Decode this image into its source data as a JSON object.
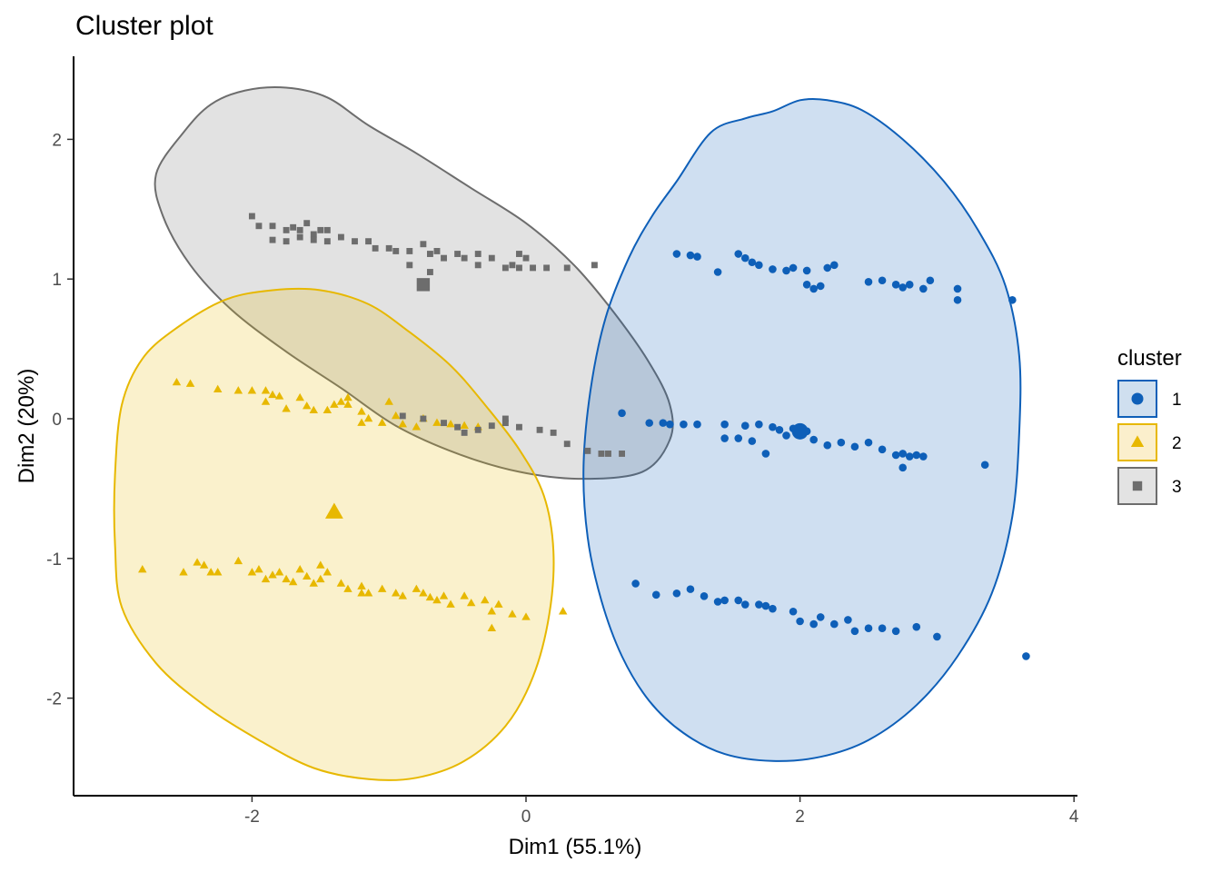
{
  "chart_data": {
    "type": "scatter",
    "title": "Cluster plot",
    "xlabel": "Dim1 (55.1%)",
    "ylabel": "Dim2 (20%)",
    "xlim": [
      -3.3,
      4.0
    ],
    "ylim": [
      -2.7,
      2.6
    ],
    "x_ticks": [
      -2,
      0,
      2,
      4
    ],
    "x_tick_labels": [
      "-2",
      "0",
      "2",
      "4"
    ],
    "y_ticks": [
      -2,
      -1,
      0,
      1,
      2
    ],
    "y_tick_labels": [
      "-2",
      "-1",
      "0",
      "1",
      "2"
    ],
    "grid": false,
    "legend": {
      "title": "cluster",
      "position": "right"
    },
    "series": [
      {
        "name": "1",
        "shape": "circle",
        "color": "#0E5FB8",
        "fill": "#CFDFEF",
        "centroid": [
          2.0,
          -0.09
        ],
        "ellipse": [
          [
            1.1,
            1.7
          ],
          [
            1.35,
            2.05
          ],
          [
            1.6,
            2.15
          ],
          [
            1.8,
            2.2
          ],
          [
            2.0,
            2.28
          ],
          [
            2.2,
            2.28
          ],
          [
            2.45,
            2.21
          ],
          [
            2.75,
            2.0
          ],
          [
            3.05,
            1.7
          ],
          [
            3.3,
            1.35
          ],
          [
            3.5,
            0.95
          ],
          [
            3.6,
            0.45
          ],
          [
            3.6,
            -0.1
          ],
          [
            3.55,
            -0.7
          ],
          [
            3.4,
            -1.25
          ],
          [
            3.15,
            -1.7
          ],
          [
            2.85,
            -2.05
          ],
          [
            2.5,
            -2.3
          ],
          [
            2.15,
            -2.42
          ],
          [
            1.8,
            -2.45
          ],
          [
            1.45,
            -2.4
          ],
          [
            1.15,
            -2.25
          ],
          [
            0.9,
            -2.02
          ],
          [
            0.7,
            -1.7
          ],
          [
            0.55,
            -1.3
          ],
          [
            0.45,
            -0.85
          ],
          [
            0.42,
            -0.35
          ],
          [
            0.47,
            0.2
          ],
          [
            0.58,
            0.72
          ],
          [
            0.75,
            1.15
          ],
          [
            0.92,
            1.45
          ]
        ],
        "points": [
          [
            1.1,
            1.18
          ],
          [
            1.2,
            1.17
          ],
          [
            1.25,
            1.16
          ],
          [
            1.4,
            1.05
          ],
          [
            1.55,
            1.18
          ],
          [
            1.6,
            1.15
          ],
          [
            1.65,
            1.12
          ],
          [
            1.7,
            1.1
          ],
          [
            1.8,
            1.07
          ],
          [
            1.9,
            1.06
          ],
          [
            1.95,
            1.08
          ],
          [
            2.05,
            1.06
          ],
          [
            2.05,
            0.96
          ],
          [
            2.1,
            0.93
          ],
          [
            2.15,
            0.95
          ],
          [
            2.2,
            1.08
          ],
          [
            2.25,
            1.1
          ],
          [
            2.5,
            0.98
          ],
          [
            2.6,
            0.99
          ],
          [
            2.7,
            0.96
          ],
          [
            2.75,
            0.94
          ],
          [
            2.8,
            0.96
          ],
          [
            2.9,
            0.93
          ],
          [
            2.95,
            0.99
          ],
          [
            3.15,
            0.93
          ],
          [
            3.15,
            0.85
          ],
          [
            3.55,
            0.85
          ],
          [
            0.7,
            0.04
          ],
          [
            0.9,
            -0.03
          ],
          [
            1.0,
            -0.03
          ],
          [
            1.05,
            -0.04
          ],
          [
            1.15,
            -0.04
          ],
          [
            1.25,
            -0.04
          ],
          [
            1.45,
            -0.04
          ],
          [
            1.45,
            -0.14
          ],
          [
            1.55,
            -0.14
          ],
          [
            1.6,
            -0.05
          ],
          [
            1.65,
            -0.16
          ],
          [
            1.7,
            -0.04
          ],
          [
            1.75,
            -0.25
          ],
          [
            1.8,
            -0.06
          ],
          [
            1.85,
            -0.08
          ],
          [
            1.9,
            -0.12
          ],
          [
            1.95,
            -0.07
          ],
          [
            2.05,
            -0.09
          ],
          [
            2.1,
            -0.15
          ],
          [
            2.2,
            -0.19
          ],
          [
            2.3,
            -0.17
          ],
          [
            2.4,
            -0.2
          ],
          [
            2.5,
            -0.17
          ],
          [
            2.6,
            -0.22
          ],
          [
            2.7,
            -0.26
          ],
          [
            2.75,
            -0.25
          ],
          [
            2.8,
            -0.27
          ],
          [
            2.85,
            -0.26
          ],
          [
            2.9,
            -0.27
          ],
          [
            3.35,
            -0.33
          ],
          [
            2.75,
            -0.35
          ],
          [
            0.8,
            -1.18
          ],
          [
            0.95,
            -1.26
          ],
          [
            1.1,
            -1.25
          ],
          [
            1.2,
            -1.22
          ],
          [
            1.3,
            -1.27
          ],
          [
            1.4,
            -1.31
          ],
          [
            1.45,
            -1.3
          ],
          [
            1.55,
            -1.3
          ],
          [
            1.6,
            -1.33
          ],
          [
            1.7,
            -1.33
          ],
          [
            1.75,
            -1.34
          ],
          [
            1.8,
            -1.36
          ],
          [
            1.95,
            -1.38
          ],
          [
            2.0,
            -1.45
          ],
          [
            2.1,
            -1.47
          ],
          [
            2.15,
            -1.42
          ],
          [
            2.25,
            -1.47
          ],
          [
            2.35,
            -1.44
          ],
          [
            2.4,
            -1.52
          ],
          [
            2.5,
            -1.5
          ],
          [
            2.6,
            -1.5
          ],
          [
            2.7,
            -1.52
          ],
          [
            2.85,
            -1.49
          ],
          [
            3.0,
            -1.56
          ],
          [
            3.65,
            -1.7
          ]
        ]
      },
      {
        "name": "2",
        "shape": "triangle",
        "color": "#E7B800",
        "fill": "#FBEFCC",
        "centroid": [
          -1.4,
          -0.67
        ],
        "ellipse": [
          [
            -2.55,
            0.65
          ],
          [
            -2.2,
            0.85
          ],
          [
            -1.85,
            0.92
          ],
          [
            -1.5,
            0.92
          ],
          [
            -1.15,
            0.82
          ],
          [
            -0.85,
            0.62
          ],
          [
            -0.55,
            0.38
          ],
          [
            -0.3,
            0.1
          ],
          [
            -0.05,
            -0.22
          ],
          [
            0.13,
            -0.55
          ],
          [
            0.2,
            -0.95
          ],
          [
            0.17,
            -1.4
          ],
          [
            0.05,
            -1.85
          ],
          [
            -0.15,
            -2.2
          ],
          [
            -0.45,
            -2.45
          ],
          [
            -0.8,
            -2.57
          ],
          [
            -1.15,
            -2.58
          ],
          [
            -1.55,
            -2.5
          ],
          [
            -1.95,
            -2.3
          ],
          [
            -2.35,
            -2.05
          ],
          [
            -2.7,
            -1.75
          ],
          [
            -2.95,
            -1.35
          ],
          [
            -3.0,
            -0.9
          ],
          [
            -3.0,
            -0.4
          ],
          [
            -2.95,
            0.1
          ],
          [
            -2.8,
            0.43
          ]
        ],
        "points": [
          [
            -2.55,
            0.26
          ],
          [
            -2.45,
            0.25
          ],
          [
            -2.25,
            0.21
          ],
          [
            -2.1,
            0.2
          ],
          [
            -2.0,
            0.2
          ],
          [
            -1.9,
            0.2
          ],
          [
            -1.85,
            0.17
          ],
          [
            -1.9,
            0.12
          ],
          [
            -1.8,
            0.16
          ],
          [
            -1.75,
            0.07
          ],
          [
            -1.65,
            0.15
          ],
          [
            -1.6,
            0.09
          ],
          [
            -1.55,
            0.06
          ],
          [
            -1.45,
            0.06
          ],
          [
            -1.4,
            0.1
          ],
          [
            -1.35,
            0.12
          ],
          [
            -1.3,
            0.1
          ],
          [
            -1.3,
            0.15
          ],
          [
            -1.2,
            0.05
          ],
          [
            -1.15,
            0.0
          ],
          [
            -1.05,
            -0.03
          ],
          [
            -1.2,
            -0.03
          ],
          [
            -1.0,
            0.12
          ],
          [
            -0.95,
            0.02
          ],
          [
            -0.9,
            -0.04
          ],
          [
            -0.8,
            -0.06
          ],
          [
            -0.75,
            0.0
          ],
          [
            -0.65,
            -0.03
          ],
          [
            -0.55,
            -0.04
          ],
          [
            -0.45,
            -0.05
          ],
          [
            -0.35,
            -0.06
          ],
          [
            -2.8,
            -1.08
          ],
          [
            -2.5,
            -1.1
          ],
          [
            -2.4,
            -1.03
          ],
          [
            -2.35,
            -1.05
          ],
          [
            -2.25,
            -1.1
          ],
          [
            -2.1,
            -1.02
          ],
          [
            -2.0,
            -1.1
          ],
          [
            -1.95,
            -1.08
          ],
          [
            -1.9,
            -1.15
          ],
          [
            -1.85,
            -1.12
          ],
          [
            -1.8,
            -1.1
          ],
          [
            -1.75,
            -1.15
          ],
          [
            -1.7,
            -1.17
          ],
          [
            -1.6,
            -1.13
          ],
          [
            -1.55,
            -1.18
          ],
          [
            -1.5,
            -1.15
          ],
          [
            -1.45,
            -1.1
          ],
          [
            -1.35,
            -1.18
          ],
          [
            -1.3,
            -1.22
          ],
          [
            -1.2,
            -1.2
          ],
          [
            -1.15,
            -1.25
          ],
          [
            -1.05,
            -1.22
          ],
          [
            -0.95,
            -1.25
          ],
          [
            -0.9,
            -1.27
          ],
          [
            -0.8,
            -1.22
          ],
          [
            -0.75,
            -1.25
          ],
          [
            -0.7,
            -1.28
          ],
          [
            -0.65,
            -1.3
          ],
          [
            -0.6,
            -1.27
          ],
          [
            -0.55,
            -1.33
          ],
          [
            -0.45,
            -1.27
          ],
          [
            -0.4,
            -1.32
          ],
          [
            -0.3,
            -1.3
          ],
          [
            -0.2,
            -1.33
          ],
          [
            -0.25,
            -1.38
          ],
          [
            -0.1,
            -1.4
          ],
          [
            0.0,
            -1.42
          ],
          [
            0.27,
            -1.38
          ],
          [
            -0.25,
            -1.5
          ],
          [
            -2.3,
            -1.1
          ],
          [
            -1.65,
            -1.08
          ],
          [
            -1.5,
            -1.05
          ],
          [
            -1.2,
            -1.25
          ]
        ]
      },
      {
        "name": "3",
        "shape": "square",
        "color": "#6D6D6D",
        "fill": "#E3E3E3",
        "centroid": [
          -0.75,
          0.96
        ],
        "ellipse": [
          [
            -2.7,
            1.75
          ],
          [
            -2.5,
            2.05
          ],
          [
            -2.3,
            2.25
          ],
          [
            -2.05,
            2.35
          ],
          [
            -1.75,
            2.37
          ],
          [
            -1.45,
            2.3
          ],
          [
            -1.15,
            2.1
          ],
          [
            -0.8,
            1.9
          ],
          [
            -0.4,
            1.65
          ],
          [
            0.0,
            1.4
          ],
          [
            0.35,
            1.1
          ],
          [
            0.65,
            0.75
          ],
          [
            0.9,
            0.4
          ],
          [
            1.05,
            0.1
          ],
          [
            1.05,
            -0.15
          ],
          [
            0.85,
            -0.38
          ],
          [
            0.4,
            -0.43
          ],
          [
            -0.05,
            -0.38
          ],
          [
            -0.5,
            -0.25
          ],
          [
            -0.95,
            -0.05
          ],
          [
            -1.35,
            0.22
          ],
          [
            -1.75,
            0.48
          ],
          [
            -2.15,
            0.78
          ],
          [
            -2.45,
            1.1
          ],
          [
            -2.65,
            1.45
          ]
        ],
        "points": [
          [
            -2.0,
            1.45
          ],
          [
            -1.95,
            1.38
          ],
          [
            -1.85,
            1.38
          ],
          [
            -1.75,
            1.35
          ],
          [
            -1.7,
            1.37
          ],
          [
            -1.65,
            1.35
          ],
          [
            -1.6,
            1.4
          ],
          [
            -1.55,
            1.32
          ],
          [
            -1.5,
            1.35
          ],
          [
            -1.45,
            1.35
          ],
          [
            -1.35,
            1.3
          ],
          [
            -1.25,
            1.27
          ],
          [
            -1.15,
            1.27
          ],
          [
            -1.1,
            1.22
          ],
          [
            -1.0,
            1.22
          ],
          [
            -0.95,
            1.2
          ],
          [
            -0.85,
            1.2
          ],
          [
            -0.75,
            1.25
          ],
          [
            -0.7,
            1.18
          ],
          [
            -0.65,
            1.2
          ],
          [
            -0.6,
            1.15
          ],
          [
            -0.5,
            1.18
          ],
          [
            -0.45,
            1.15
          ],
          [
            -0.35,
            1.1
          ],
          [
            -0.25,
            1.15
          ],
          [
            -0.15,
            1.08
          ],
          [
            -0.1,
            1.1
          ],
          [
            -0.05,
            1.08
          ],
          [
            0.05,
            1.08
          ],
          [
            0.15,
            1.08
          ],
          [
            0.3,
            1.08
          ],
          [
            0.5,
            1.1
          ],
          [
            -1.85,
            1.28
          ],
          [
            -1.75,
            1.27
          ],
          [
            -1.65,
            1.3
          ],
          [
            -1.55,
            1.28
          ],
          [
            -1.45,
            1.27
          ],
          [
            -0.85,
            1.1
          ],
          [
            -0.7,
            1.05
          ],
          [
            -0.35,
            1.18
          ],
          [
            -0.05,
            1.18
          ],
          [
            0.0,
            1.15
          ],
          [
            -0.9,
            0.02
          ],
          [
            -0.75,
            0.0
          ],
          [
            -0.6,
            -0.03
          ],
          [
            -0.5,
            -0.06
          ],
          [
            -0.45,
            -0.1
          ],
          [
            -0.35,
            -0.08
          ],
          [
            -0.25,
            -0.05
          ],
          [
            -0.15,
            -0.03
          ],
          [
            -0.05,
            -0.06
          ],
          [
            0.1,
            -0.08
          ],
          [
            0.2,
            -0.1
          ],
          [
            0.3,
            -0.18
          ],
          [
            0.55,
            -0.25
          ],
          [
            0.6,
            -0.25
          ],
          [
            0.7,
            -0.25
          ],
          [
            -0.15,
            0.0
          ],
          [
            0.45,
            -0.23
          ]
        ]
      }
    ]
  }
}
